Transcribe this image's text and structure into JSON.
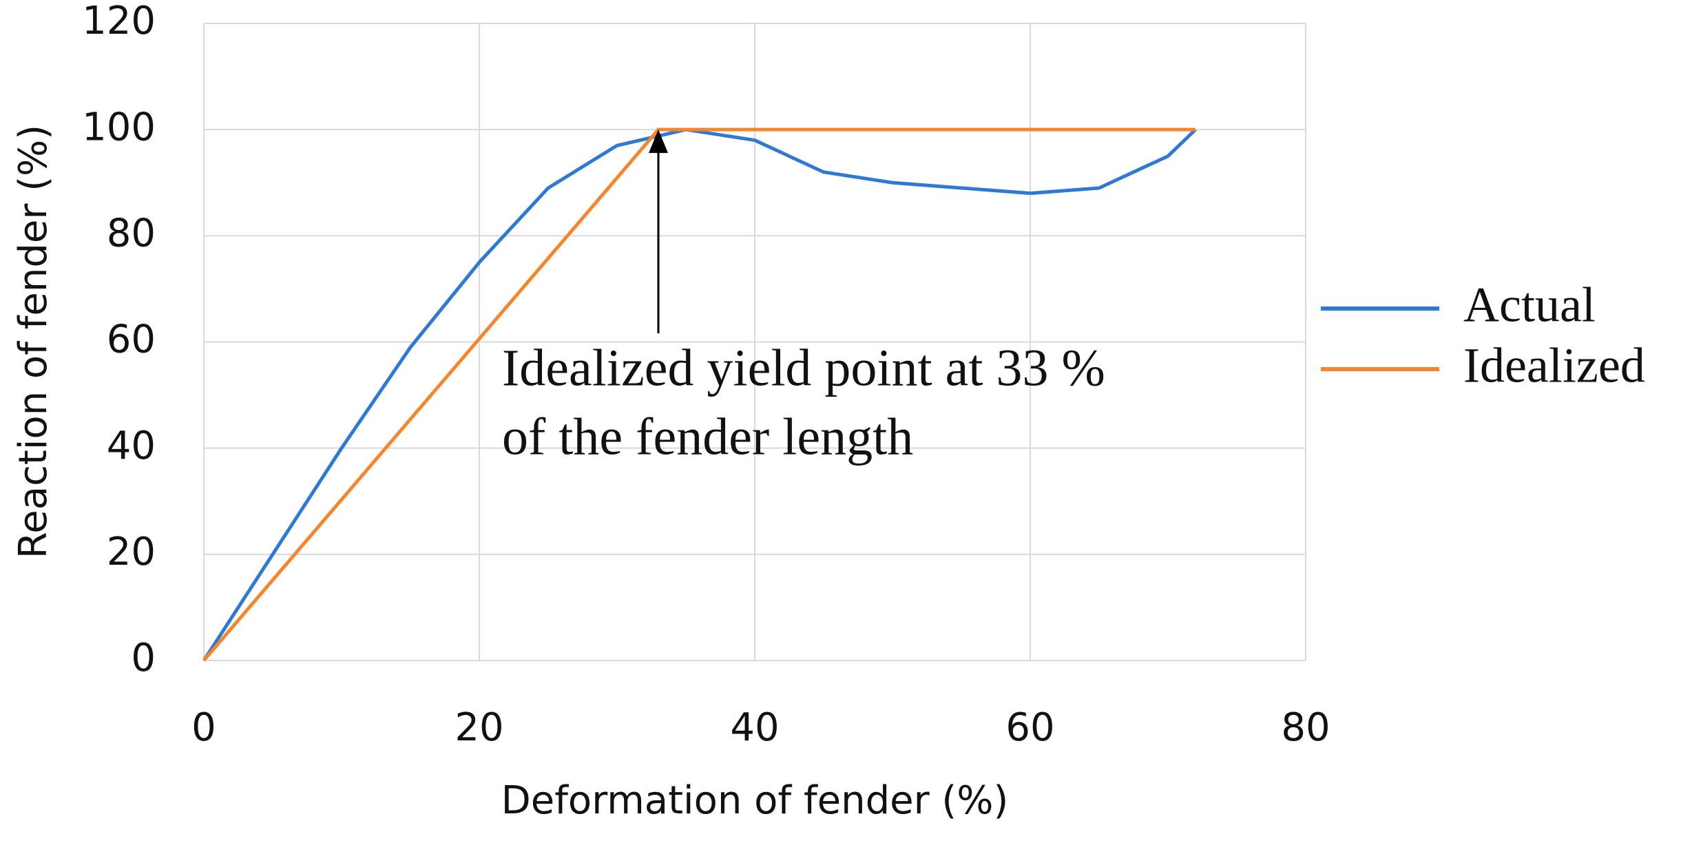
{
  "chart_data": {
    "type": "line",
    "xlabel": "Deformation of fender (%)",
    "ylabel": "Reaction of fender (%)",
    "xlim": [
      0,
      80
    ],
    "xticks": [
      0,
      20,
      40,
      60,
      80
    ],
    "ylim": [
      0,
      120
    ],
    "yticks": [
      0,
      20,
      40,
      60,
      80,
      100,
      120
    ],
    "grid": true,
    "legend": "right",
    "series": [
      {
        "name": "Actual",
        "color": "#2f78d4",
        "x": [
          0,
          5,
          10,
          15,
          20,
          25,
          30,
          35,
          40,
          45,
          50,
          55,
          60,
          65,
          70,
          72
        ],
        "values": [
          0,
          20,
          40,
          59,
          75,
          89,
          97,
          100,
          98,
          92,
          90,
          89,
          88,
          89,
          95,
          100
        ]
      },
      {
        "name": "Idealized",
        "color": "#f5862e",
        "x": [
          0,
          33,
          72
        ],
        "values": [
          0,
          100,
          100
        ]
      }
    ],
    "annotation": {
      "lines": [
        "Idealized yield point at 33 %",
        "of the fender length"
      ]
    }
  }
}
